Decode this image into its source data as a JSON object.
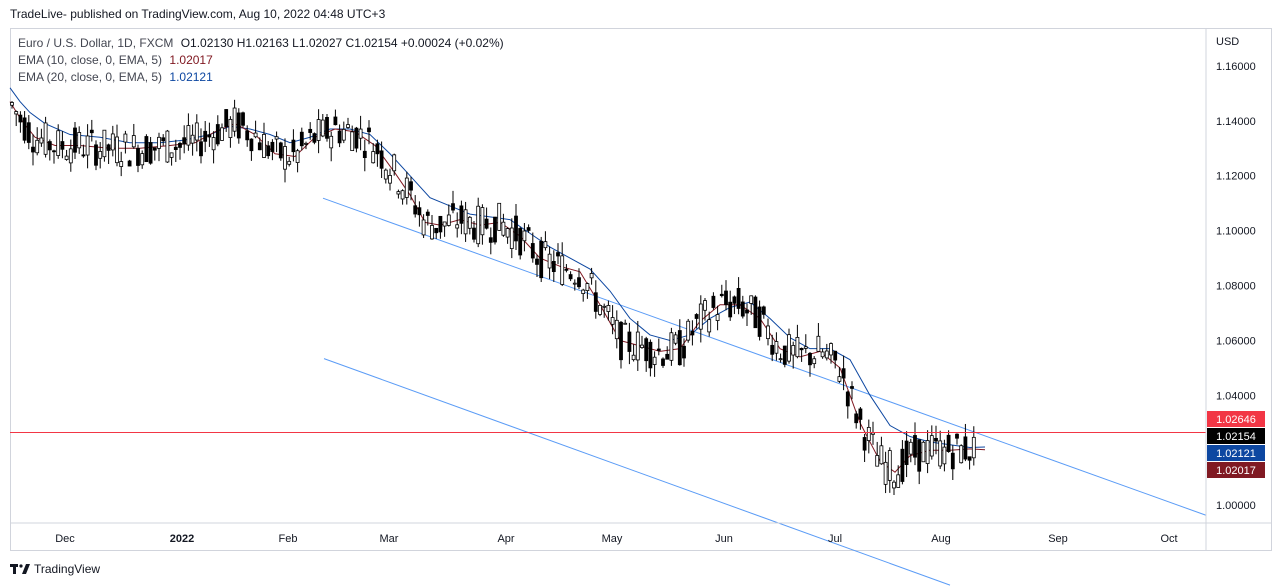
{
  "header": {
    "text": "TradeLive- published on TradingView.com, Aug 10, 2022 04:48 UTC+3"
  },
  "legend": {
    "symbol": "Euro / U.S. Dollar, 1D, FXCM",
    "ohlc": "O1.02130  H1.02163  L1.02027  C1.02154  +0.00024 (+0.02%)",
    "ema10_label": "EMA (10, close, 0, EMA, 5)",
    "ema10_value": "1.02017",
    "ema20_label": "EMA (20, close, 0, EMA, 5)",
    "ema20_value": "1.02121"
  },
  "footer": {
    "brand": "TradingView"
  },
  "chart_data": {
    "type": "candlestick",
    "currency": "USD",
    "x_ticks": [
      {
        "label": "Dec"
      },
      {
        "label": "2022"
      },
      {
        "label": "Feb"
      },
      {
        "label": "Mar"
      },
      {
        "label": "Apr"
      },
      {
        "label": "May"
      },
      {
        "label": "Jun"
      },
      {
        "label": "Jul"
      },
      {
        "label": "Aug"
      },
      {
        "label": "Sep"
      },
      {
        "label": "Oct"
      }
    ],
    "y_ticks": [
      "1.16000",
      "1.14000",
      "1.12000",
      "1.10000",
      "1.08000",
      "1.06000",
      "1.04000",
      "1.00000"
    ],
    "ylim": [
      0.9935,
      1.1738
    ],
    "horizontal_line": {
      "value": 1.02646,
      "label": "1.02646",
      "color": "#f23645"
    },
    "price_labels": [
      {
        "label": "1.02646",
        "value": 1.02646,
        "color": "#f23645"
      },
      {
        "label": "1.02154",
        "value": 1.02154,
        "color": "#000000"
      },
      {
        "label": "1.02121",
        "value": 1.02121,
        "color": "#0d47a1"
      },
      {
        "label": "1.02017",
        "value": 1.02017,
        "color": "#801922"
      }
    ],
    "ema10_color": "#801922",
    "ema20_color": "#0d47a1",
    "channel_color": "#5b9cf6",
    "candle_color": "#000000",
    "ema20_points": [
      [
        0,
        1.152
      ],
      [
        10,
        1.147
      ],
      [
        20,
        1.143
      ],
      [
        35,
        1.139
      ],
      [
        60,
        1.135
      ],
      [
        90,
        1.134
      ],
      [
        120,
        1.132
      ],
      [
        150,
        1.132
      ],
      [
        175,
        1.133
      ],
      [
        200,
        1.135
      ],
      [
        220,
        1.138
      ],
      [
        240,
        1.137
      ],
      [
        260,
        1.135
      ],
      [
        280,
        1.132
      ],
      [
        300,
        1.134
      ],
      [
        320,
        1.137
      ],
      [
        340,
        1.137
      ],
      [
        360,
        1.135
      ],
      [
        380,
        1.128
      ],
      [
        400,
        1.12
      ],
      [
        420,
        1.112
      ],
      [
        440,
        1.109
      ],
      [
        460,
        1.106
      ],
      [
        480,
        1.105
      ],
      [
        500,
        1.104
      ],
      [
        520,
        1.099
      ],
      [
        540,
        1.094
      ],
      [
        560,
        1.09
      ],
      [
        580,
        1.086
      ],
      [
        600,
        1.078
      ],
      [
        620,
        1.068
      ],
      [
        640,
        1.062
      ],
      [
        660,
        1.06
      ],
      [
        680,
        1.062
      ],
      [
        700,
        1.068
      ],
      [
        720,
        1.072
      ],
      [
        740,
        1.074
      ],
      [
        760,
        1.068
      ],
      [
        780,
        1.061
      ],
      [
        800,
        1.057
      ],
      [
        820,
        1.057
      ],
      [
        840,
        1.053
      ],
      [
        860,
        1.04
      ],
      [
        880,
        1.029
      ],
      [
        900,
        1.025
      ],
      [
        920,
        1.023
      ],
      [
        940,
        1.022
      ],
      [
        960,
        1.021
      ],
      [
        975,
        1.0212
      ]
    ],
    "ema10_points": [
      [
        0,
        1.147
      ],
      [
        10,
        1.141
      ],
      [
        25,
        1.134
      ],
      [
        45,
        1.131
      ],
      [
        70,
        1.131
      ],
      [
        100,
        1.13
      ],
      [
        130,
        1.13
      ],
      [
        160,
        1.131
      ],
      [
        185,
        1.132
      ],
      [
        205,
        1.136
      ],
      [
        225,
        1.139
      ],
      [
        245,
        1.135
      ],
      [
        265,
        1.128
      ],
      [
        285,
        1.127
      ],
      [
        305,
        1.134
      ],
      [
        325,
        1.137
      ],
      [
        345,
        1.136
      ],
      [
        365,
        1.131
      ],
      [
        385,
        1.121
      ],
      [
        400,
        1.113
      ],
      [
        415,
        1.103
      ],
      [
        430,
        1.102
      ],
      [
        450,
        1.104
      ],
      [
        470,
        1.102
      ],
      [
        490,
        1.103
      ],
      [
        510,
        1.098
      ],
      [
        530,
        1.09
      ],
      [
        550,
        1.087
      ],
      [
        570,
        1.085
      ],
      [
        590,
        1.073
      ],
      [
        610,
        1.06
      ],
      [
        630,
        1.058
      ],
      [
        650,
        1.056
      ],
      [
        670,
        1.057
      ],
      [
        690,
        1.067
      ],
      [
        710,
        1.073
      ],
      [
        730,
        1.073
      ],
      [
        750,
        1.068
      ],
      [
        770,
        1.057
      ],
      [
        790,
        1.054
      ],
      [
        810,
        1.056
      ],
      [
        830,
        1.05
      ],
      [
        850,
        1.03
      ],
      [
        870,
        1.016
      ],
      [
        885,
        1.012
      ],
      [
        900,
        1.018
      ],
      [
        920,
        1.02
      ],
      [
        940,
        1.02
      ],
      [
        960,
        1.0205
      ],
      [
        975,
        1.0202
      ]
    ],
    "channel_upper": [
      [
        1.5,
        1.1488
      ],
      [
        50.5,
        1.0202
      ]
    ],
    "channel_lower": [
      [
        1.5,
        1.0908
      ],
      [
        38.1,
        0.994
      ]
    ]
  }
}
